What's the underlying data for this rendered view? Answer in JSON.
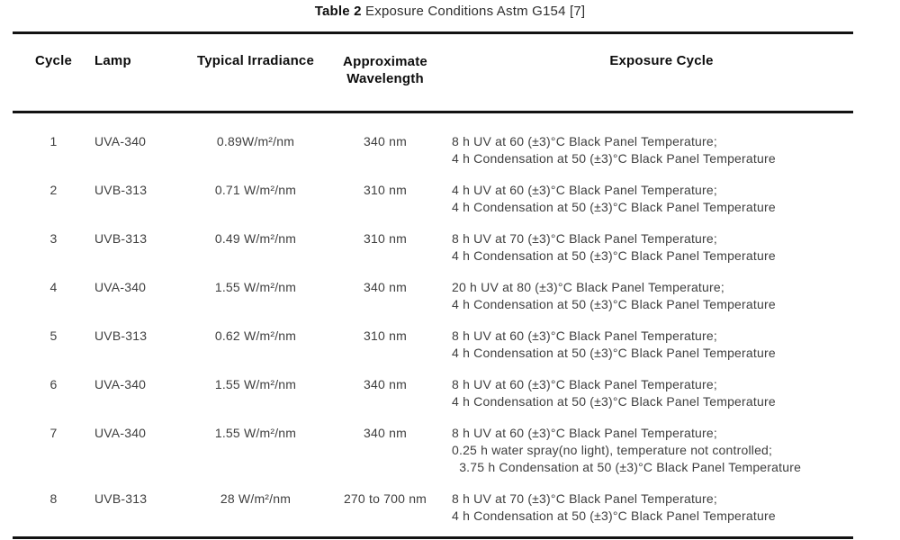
{
  "title": {
    "label_bold": "Table 2",
    "label_rest": " Exposure Conditions Astm G154 [7]"
  },
  "table": {
    "headers": [
      "Cycle",
      "Lamp",
      "Typical Irradiance",
      "Approximate Wavelength",
      "Exposure Cycle"
    ],
    "rows": [
      {
        "cycle": "1",
        "lamp": "UVA-340",
        "irradiance": "0.89W/m²/nm",
        "wavelength": "340 nm",
        "exposure": [
          "8 h UV at 60 (±3)°C Black Panel Temperature;",
          "4 h Condensation at 50 (±3)°C Black Panel Temperature"
        ]
      },
      {
        "cycle": "2",
        "lamp": "UVB-313",
        "irradiance": "0.71 W/m²/nm",
        "wavelength": "310 nm",
        "exposure": [
          "4 h UV at 60 (±3)°C Black Panel Temperature;",
          "4 h Condensation at 50 (±3)°C Black Panel Temperature"
        ]
      },
      {
        "cycle": "3",
        "lamp": "UVB-313",
        "irradiance": "0.49 W/m²/nm",
        "wavelength": "310 nm",
        "exposure": [
          "8 h UV at 70 (±3)°C Black Panel Temperature;",
          "4 h Condensation at 50 (±3)°C Black Panel Temperature"
        ]
      },
      {
        "cycle": "4",
        "lamp": "UVA-340",
        "irradiance": "1.55 W/m²/nm",
        "wavelength": "340 nm",
        "exposure": [
          "20 h UV at 80 (±3)°C Black Panel Temperature;",
          "4 h Condensation at 50 (±3)°C Black Panel Temperature"
        ]
      },
      {
        "cycle": "5",
        "lamp": "UVB-313",
        "irradiance": "0.62 W/m²/nm",
        "wavelength": "310 nm",
        "exposure": [
          "8 h UV at 60 (±3)°C Black Panel Temperature;",
          "4 h Condensation at 50 (±3)°C Black Panel Temperature"
        ]
      },
      {
        "cycle": "6",
        "lamp": "UVA-340",
        "irradiance": "1.55 W/m²/nm",
        "wavelength": "340 nm",
        "exposure": [
          "8 h UV at 60 (±3)°C Black Panel Temperature;",
          "4 h Condensation at 50 (±3)°C Black Panel Temperature"
        ]
      },
      {
        "cycle": "7",
        "lamp": "UVA-340",
        "irradiance": "1.55 W/m²/nm",
        "wavelength": "340 nm",
        "exposure": [
          "8 h UV at 60 (±3)°C Black Panel Temperature;",
          "0.25 h water spray(no light), temperature not controlled;",
          "  3.75 h Condensation at 50 (±3)°C Black Panel Temperature"
        ]
      },
      {
        "cycle": "8",
        "lamp": "UVB-313",
        "irradiance": "28 W/m²/nm",
        "wavelength": "270 to 700 nm",
        "exposure": [
          "8 h UV at 70 (±3)°C Black Panel Temperature;",
          "4 h Condensation at 50 (±3)°C Black Panel Temperature"
        ]
      }
    ]
  }
}
